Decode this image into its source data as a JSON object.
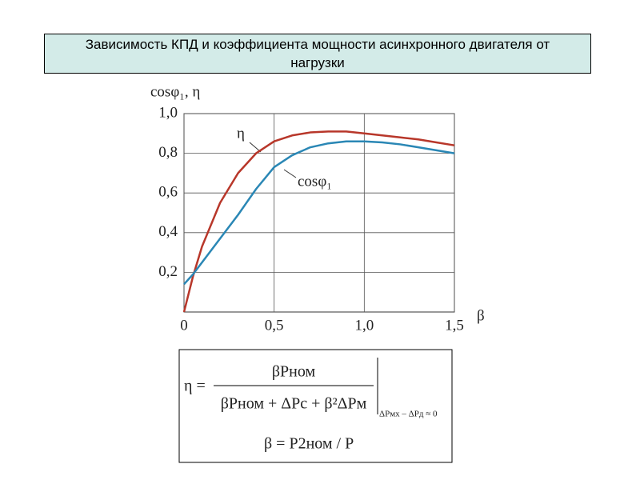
{
  "chart_data": {
    "type": "line",
    "title": "Зависимость КПД и коэффициента мощности асинхронного двигателя от нагрузки",
    "xlabel": "β",
    "ylabel": "cosφ₁, η",
    "x": [
      0,
      0.05,
      0.1,
      0.2,
      0.3,
      0.4,
      0.5,
      0.6,
      0.7,
      0.8,
      0.9,
      1.0,
      1.1,
      1.2,
      1.3,
      1.4,
      1.5
    ],
    "series": [
      {
        "name": "η",
        "color": "#b8372a",
        "values": [
          0,
          0.18,
          0.33,
          0.55,
          0.7,
          0.8,
          0.86,
          0.89,
          0.905,
          0.91,
          0.91,
          0.9,
          0.89,
          0.88,
          0.87,
          0.855,
          0.84
        ]
      },
      {
        "name": "cosφ₁",
        "color": "#2a87b5",
        "values": [
          0.14,
          0.19,
          0.25,
          0.37,
          0.49,
          0.62,
          0.73,
          0.79,
          0.83,
          0.85,
          0.86,
          0.86,
          0.855,
          0.845,
          0.83,
          0.815,
          0.8
        ]
      }
    ],
    "xlim": [
      0,
      1.5
    ],
    "ylim": [
      0,
      1.0
    ],
    "xticks": [
      {
        "value": 0,
        "label": "0"
      },
      {
        "value": 0.5,
        "label": "0,5"
      },
      {
        "value": 1.0,
        "label": "1,0"
      },
      {
        "value": 1.5,
        "label": "1,5"
      }
    ],
    "yticks": [
      {
        "value": 0.2,
        "label": "0,2"
      },
      {
        "value": 0.4,
        "label": "0,4"
      },
      {
        "value": 0.6,
        "label": "0,6"
      },
      {
        "value": 0.8,
        "label": "0,8"
      },
      {
        "value": 1.0,
        "label": "1,0"
      }
    ],
    "grid": true
  },
  "formula": {
    "lhs": "η =",
    "numerator": "βPном",
    "denominator": "βPном + ΔPс + β²ΔPм",
    "condition": "ΔPмх – ΔPд ≈ 0",
    "load": "β = P2ном / P"
  }
}
